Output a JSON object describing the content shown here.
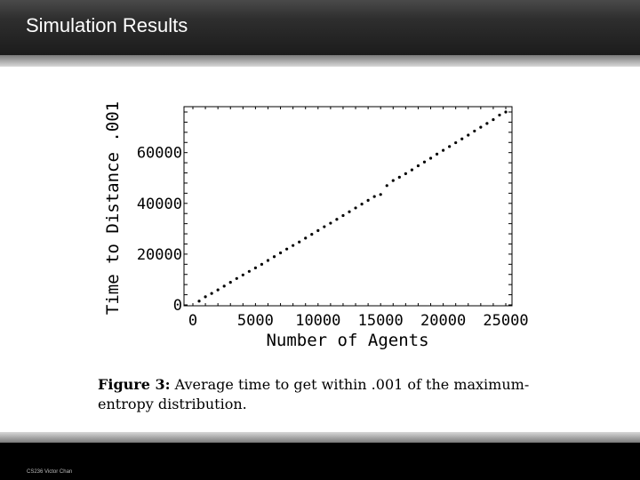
{
  "header": {
    "title": "Simulation Results"
  },
  "footer": {
    "text": "CS236 Victor Chan"
  },
  "chart_data": {
    "type": "scatter",
    "title": "",
    "xlabel": "Number of Agents",
    "ylabel": "Time to Distance .001",
    "xlim": [
      0,
      25000
    ],
    "ylim": [
      0,
      76000
    ],
    "x_ticks": [
      "0",
      "5000",
      "10000",
      "15000",
      "20000",
      "25000"
    ],
    "y_ticks": [
      "0",
      "20000",
      "40000",
      "60000"
    ],
    "series": [
      {
        "x": [
          500,
          1000,
          1500,
          2000,
          2500,
          3000,
          3500,
          4000,
          4500,
          5000,
          5500,
          6000,
          6500,
          7000,
          7500,
          8000,
          8500,
          9000,
          9500,
          10000,
          10500,
          11000,
          11500,
          12000,
          12500,
          13000,
          13500,
          14000,
          14500,
          15000,
          15500,
          16000,
          16500,
          17000,
          17500,
          18000,
          18500,
          19000,
          19500,
          20000,
          20500,
          21000,
          21500,
          22000,
          22500,
          23000,
          23500,
          24000,
          24500,
          25000
        ],
        "y": [
          1500,
          3200,
          4500,
          5900,
          7400,
          8900,
          10400,
          11800,
          13200,
          14600,
          16000,
          17500,
          19000,
          20500,
          22000,
          23400,
          24800,
          26300,
          27800,
          29300,
          30800,
          32200,
          33700,
          35200,
          36700,
          38200,
          39700,
          41200,
          42700,
          43500,
          47000,
          49000,
          50300,
          51700,
          53200,
          54800,
          56300,
          57800,
          59400,
          60900,
          62400,
          63900,
          65400,
          66900,
          68500,
          70000,
          71500,
          73000,
          74800,
          76000
        ]
      }
    ]
  },
  "caption": {
    "label": "Figure 3:",
    "text": "Average time to get within .001 of the maximum-entropy distribution."
  }
}
